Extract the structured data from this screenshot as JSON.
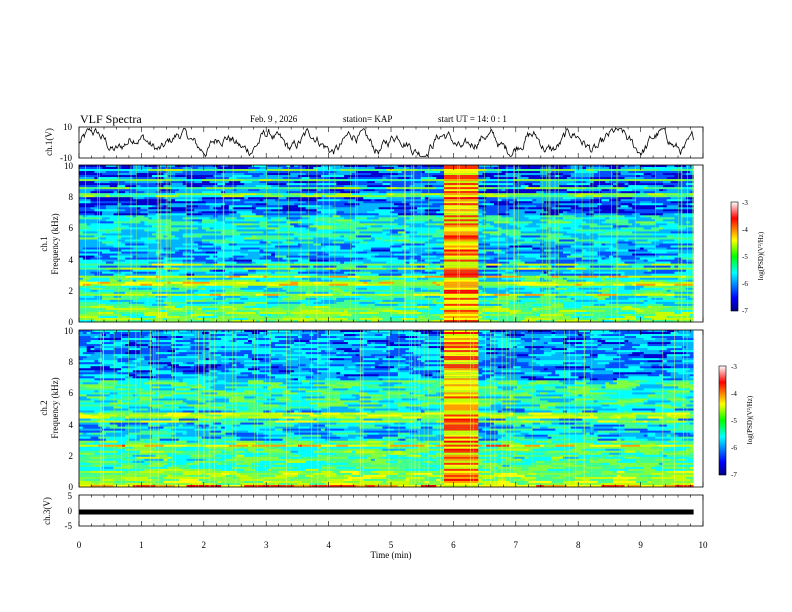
{
  "header": {
    "title": "VLF Spectra",
    "date": "Feb. 9 , 2026",
    "station": "station= KAP",
    "start": "start UT = 14: 0 : 1"
  },
  "chart_data": [
    {
      "id": "ch1-waveform",
      "type": "line",
      "ylabel": "ch.1(V)",
      "ylim": [
        -10,
        10
      ],
      "yticks": [
        "10",
        "-10"
      ],
      "x_range_min": [
        0,
        9.85
      ]
    },
    {
      "id": "ch1-spectrogram",
      "type": "heatmap",
      "ylabel_line1": "ch.1",
      "ylabel_line2": "Frequency (kHz)",
      "ylim": [
        0,
        10
      ],
      "yticks": [
        "0",
        "2",
        "4",
        "6",
        "8",
        "10"
      ],
      "burst_interval_min": [
        5.85,
        6.4
      ],
      "colorbar": {
        "range": [
          -7,
          -3
        ],
        "ticks": [
          "-3",
          "-4",
          "-5",
          "-6",
          "-7"
        ],
        "label": "log(PSD)(V²/Hz)"
      }
    },
    {
      "id": "ch2-spectrogram",
      "type": "heatmap",
      "ylabel_line1": "ch.2",
      "ylabel_line2": "Frequency (kHz)",
      "ylim": [
        0,
        10
      ],
      "yticks": [
        "0",
        "2",
        "4",
        "6",
        "8",
        "10"
      ],
      "burst_interval_min": [
        5.85,
        6.4
      ],
      "colorbar": {
        "range": [
          -7,
          -3
        ],
        "ticks": [
          "-3",
          "-4",
          "-5",
          "-6",
          "-7"
        ],
        "label": "log(PSD)(V²/Hz)"
      }
    },
    {
      "id": "ch3-waveform",
      "type": "line",
      "ylabel": "ch.3(V)",
      "ylim": [
        -5,
        5
      ],
      "yticks": [
        "5",
        "0",
        "-5"
      ],
      "level": -0.5
    }
  ],
  "xaxis": {
    "label": "Time (min)",
    "ticks": [
      "0",
      "1",
      "2",
      "3",
      "4",
      "5",
      "6",
      "7",
      "8",
      "9",
      "10"
    ],
    "xlim": [
      0,
      10
    ]
  }
}
